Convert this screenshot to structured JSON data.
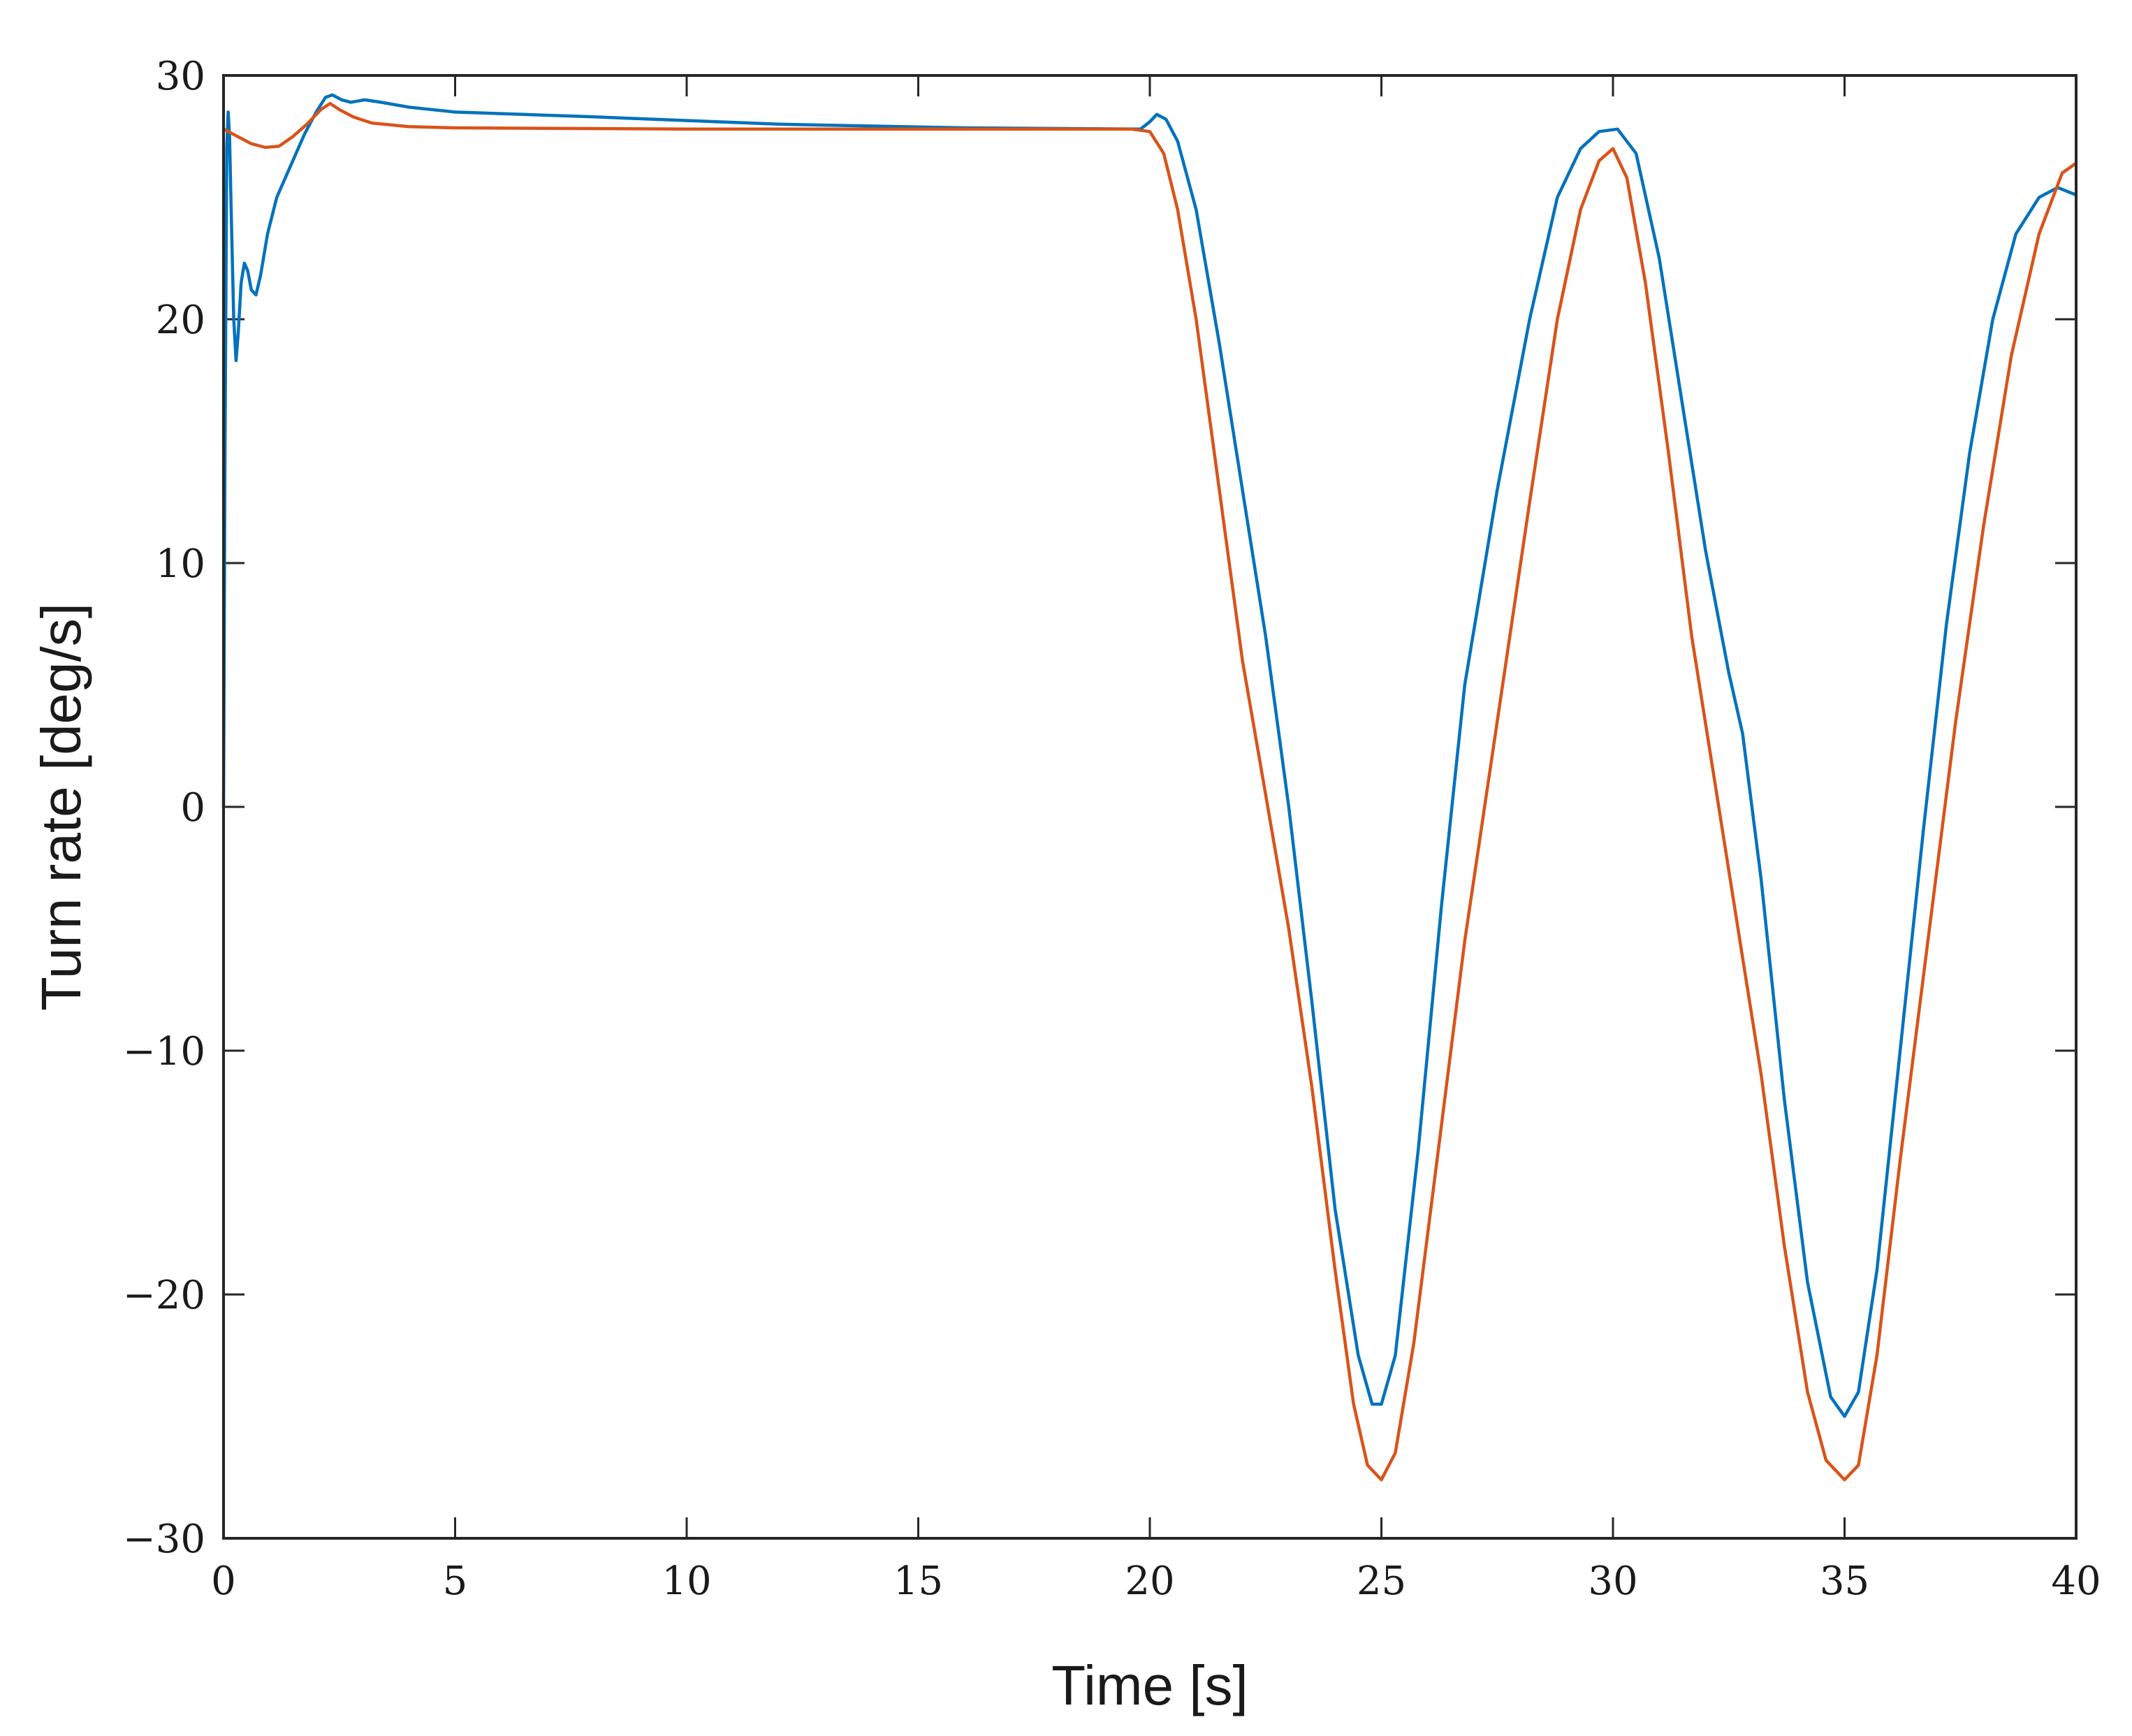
{
  "chart_data": {
    "type": "line",
    "title": "",
    "xlabel": "Time [s]",
    "ylabel": "Turn rate [deg/s]",
    "xlim": [
      0,
      40
    ],
    "ylim": [
      -30,
      30
    ],
    "xticks": [
      0,
      5,
      10,
      15,
      20,
      25,
      30,
      35,
      40
    ],
    "yticks": [
      -30,
      -20,
      -10,
      0,
      10,
      20,
      30
    ],
    "xtick_labels": [
      "0",
      "5",
      "10",
      "15",
      "20",
      "25",
      "30",
      "35",
      "40"
    ],
    "ytick_labels": [
      "−30",
      "−20",
      "−10",
      "0",
      "10",
      "20",
      "30"
    ],
    "grid": false,
    "legend": "none",
    "series": [
      {
        "color": "#0072BD",
        "points": [
          [
            0.0,
            0.0
          ],
          [
            0.03,
            14.0
          ],
          [
            0.07,
            27.0
          ],
          [
            0.1,
            28.5
          ],
          [
            0.13,
            27.5
          ],
          [
            0.17,
            24.0
          ],
          [
            0.22,
            20.0
          ],
          [
            0.27,
            18.3
          ],
          [
            0.32,
            19.5
          ],
          [
            0.38,
            21.5
          ],
          [
            0.45,
            22.3
          ],
          [
            0.52,
            22.0
          ],
          [
            0.6,
            21.2
          ],
          [
            0.7,
            21.0
          ],
          [
            0.8,
            21.8
          ],
          [
            0.95,
            23.5
          ],
          [
            1.15,
            25.0
          ],
          [
            1.45,
            26.3
          ],
          [
            1.75,
            27.6
          ],
          [
            2.0,
            28.5
          ],
          [
            2.2,
            29.1
          ],
          [
            2.35,
            29.2
          ],
          [
            2.55,
            29.0
          ],
          [
            2.75,
            28.9
          ],
          [
            3.05,
            29.0
          ],
          [
            3.4,
            28.9
          ],
          [
            4.0,
            28.7
          ],
          [
            5.0,
            28.5
          ],
          [
            8.0,
            28.3
          ],
          [
            12.0,
            28.0
          ],
          [
            16.0,
            27.85
          ],
          [
            19.8,
            27.8
          ],
          [
            20.0,
            28.1
          ],
          [
            20.15,
            28.4
          ],
          [
            20.35,
            28.2
          ],
          [
            20.6,
            27.3
          ],
          [
            21.0,
            24.5
          ],
          [
            21.5,
            19.0
          ],
          [
            22.0,
            13.0
          ],
          [
            22.5,
            7.0
          ],
          [
            23.0,
            0.0
          ],
          [
            23.5,
            -8.0
          ],
          [
            24.0,
            -16.5
          ],
          [
            24.5,
            -22.5
          ],
          [
            24.8,
            -24.5
          ],
          [
            25.0,
            -24.5
          ],
          [
            25.3,
            -22.5
          ],
          [
            25.8,
            -14.0
          ],
          [
            26.3,
            -4.0
          ],
          [
            26.8,
            5.0
          ],
          [
            27.5,
            13.0
          ],
          [
            28.2,
            20.0
          ],
          [
            28.8,
            25.0
          ],
          [
            29.3,
            27.0
          ],
          [
            29.7,
            27.7
          ],
          [
            30.1,
            27.8
          ],
          [
            30.5,
            26.8
          ],
          [
            31.0,
            22.5
          ],
          [
            31.5,
            16.5
          ],
          [
            32.0,
            10.5
          ],
          [
            32.5,
            5.5
          ],
          [
            32.8,
            3.0
          ],
          [
            33.2,
            -3.0
          ],
          [
            33.7,
            -12.0
          ],
          [
            34.2,
            -19.5
          ],
          [
            34.7,
            -24.2
          ],
          [
            35.0,
            -25.0
          ],
          [
            35.3,
            -24.0
          ],
          [
            35.7,
            -19.0
          ],
          [
            36.2,
            -10.0
          ],
          [
            36.7,
            -1.0
          ],
          [
            37.2,
            7.5
          ],
          [
            37.7,
            14.5
          ],
          [
            38.2,
            20.0
          ],
          [
            38.7,
            23.5
          ],
          [
            39.2,
            25.0
          ],
          [
            39.6,
            25.4
          ],
          [
            40.0,
            25.1
          ]
        ]
      },
      {
        "color": "#D95319",
        "points": [
          [
            0.0,
            27.8
          ],
          [
            0.3,
            27.5
          ],
          [
            0.6,
            27.2
          ],
          [
            0.9,
            27.05
          ],
          [
            1.2,
            27.1
          ],
          [
            1.5,
            27.5
          ],
          [
            1.8,
            28.0
          ],
          [
            2.1,
            28.6
          ],
          [
            2.3,
            28.85
          ],
          [
            2.5,
            28.6
          ],
          [
            2.8,
            28.3
          ],
          [
            3.2,
            28.05
          ],
          [
            4.0,
            27.9
          ],
          [
            5.0,
            27.85
          ],
          [
            10.0,
            27.8
          ],
          [
            15.0,
            27.8
          ],
          [
            19.6,
            27.8
          ],
          [
            20.0,
            27.7
          ],
          [
            20.3,
            26.8
          ],
          [
            20.6,
            24.5
          ],
          [
            21.0,
            20.0
          ],
          [
            21.5,
            13.0
          ],
          [
            22.0,
            6.0
          ],
          [
            22.5,
            0.5
          ],
          [
            23.0,
            -5.0
          ],
          [
            23.5,
            -11.5
          ],
          [
            24.0,
            -19.0
          ],
          [
            24.4,
            -24.5
          ],
          [
            24.7,
            -27.0
          ],
          [
            25.0,
            -27.6
          ],
          [
            25.3,
            -26.5
          ],
          [
            25.7,
            -22.0
          ],
          [
            26.2,
            -14.5
          ],
          [
            26.8,
            -5.5
          ],
          [
            27.5,
            3.5
          ],
          [
            28.2,
            12.5
          ],
          [
            28.8,
            20.0
          ],
          [
            29.3,
            24.5
          ],
          [
            29.7,
            26.5
          ],
          [
            30.0,
            27.0
          ],
          [
            30.3,
            25.8
          ],
          [
            30.7,
            21.5
          ],
          [
            31.2,
            14.5
          ],
          [
            31.7,
            7.0
          ],
          [
            32.2,
            1.0
          ],
          [
            32.7,
            -5.0
          ],
          [
            33.2,
            -11.0
          ],
          [
            33.7,
            -18.0
          ],
          [
            34.2,
            -24.0
          ],
          [
            34.6,
            -26.8
          ],
          [
            35.0,
            -27.6
          ],
          [
            35.3,
            -27.0
          ],
          [
            35.7,
            -22.5
          ],
          [
            36.2,
            -14.5
          ],
          [
            36.8,
            -5.5
          ],
          [
            37.4,
            3.5
          ],
          [
            38.0,
            11.5
          ],
          [
            38.6,
            18.5
          ],
          [
            39.2,
            23.5
          ],
          [
            39.7,
            26.0
          ],
          [
            40.0,
            26.4
          ]
        ]
      }
    ]
  }
}
